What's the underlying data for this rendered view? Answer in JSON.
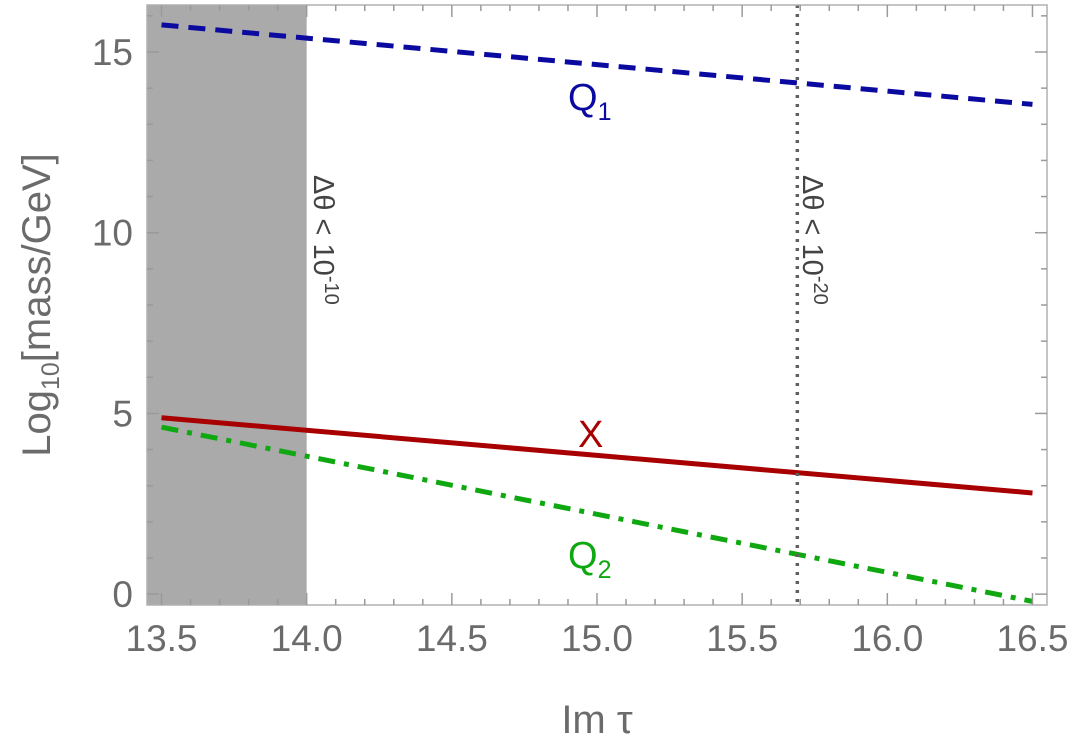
{
  "chart_data": {
    "type": "line",
    "xlabel": "Im τ",
    "ylabel_parts": {
      "prefix": "Log",
      "sub": "10",
      "suffix": "[mass/GeV]"
    },
    "xlim": [
      13.45,
      16.55
    ],
    "ylim": [
      -0.3,
      16.3
    ],
    "xticks": [
      "13.5",
      "14.0",
      "14.5",
      "15.0",
      "15.5",
      "16.0",
      "16.5"
    ],
    "yticks": [
      "0",
      "5",
      "10",
      "15"
    ],
    "minor_ticks": true,
    "grid": false,
    "shaded_region": {
      "x_from": 13.45,
      "x_to": 14.0,
      "color": "#aaaaaa"
    },
    "vertical_line": {
      "x": 15.69,
      "style": "dotted",
      "color": "#606060"
    },
    "annotations": [
      {
        "id": "bound10",
        "prefix": "Δθ < 10",
        "sup": "-10"
      },
      {
        "id": "bound20",
        "prefix": "Δθ < 10",
        "sup": "-20"
      }
    ],
    "series": [
      {
        "id": "Q1",
        "label": "Q",
        "sub": "1",
        "color": "#0a0aa0",
        "style": "dashed",
        "x": [
          13.5,
          16.5
        ],
        "y": [
          15.75,
          13.55
        ]
      },
      {
        "id": "X",
        "label": "X",
        "sub": "",
        "color": "#a80000",
        "style": "solid",
        "x": [
          13.5,
          16.5
        ],
        "y": [
          4.88,
          2.8
        ]
      },
      {
        "id": "Q2",
        "label": "Q",
        "sub": "2",
        "color": "#10a810",
        "style": "dashdot",
        "x": [
          13.5,
          16.5
        ],
        "y": [
          4.62,
          -0.2
        ]
      }
    ]
  }
}
